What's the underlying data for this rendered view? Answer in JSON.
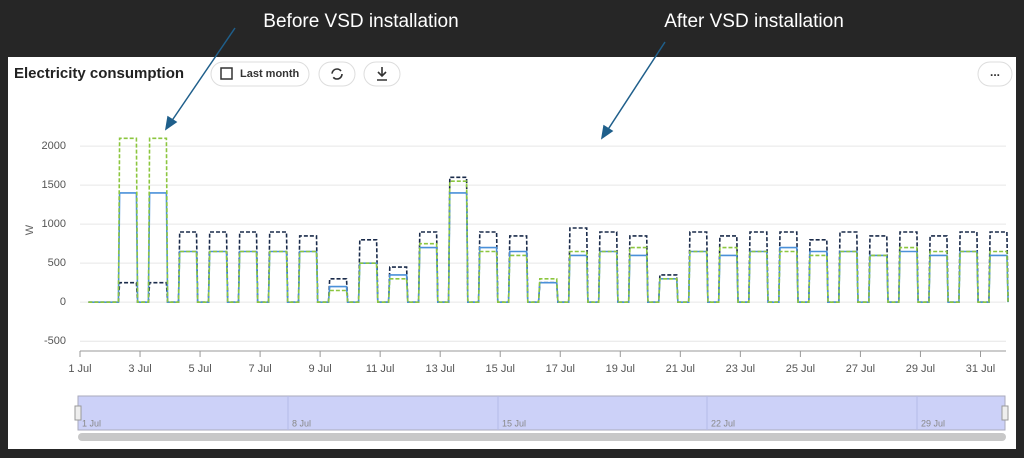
{
  "annotations": [
    "Before VSD installation",
    "After VSD installation"
  ],
  "toolbar": {
    "range_button": "Last month",
    "menu": "..."
  },
  "navigator": {
    "labels": [
      "1 Jul",
      "8 Jul",
      "15 Jul",
      "22 Jul",
      "29 Jul"
    ]
  },
  "chart_data": {
    "type": "line",
    "title": "Electricity consumption",
    "y_label": "W",
    "x": [
      1.28,
      1.32,
      1.88,
      1.92,
      2.28,
      2.32,
      2.88,
      2.92,
      3.28,
      3.32,
      3.88,
      3.92,
      4.28,
      4.32,
      4.88,
      4.92,
      5.28,
      5.32,
      5.88,
      5.92,
      6.28,
      6.32,
      6.88,
      6.92,
      7.28,
      7.32,
      7.88,
      7.92,
      8.28,
      8.32,
      8.88,
      8.92,
      9.28,
      9.32,
      9.88,
      9.92,
      10.28,
      10.32,
      10.88,
      10.92,
      11.28,
      11.32,
      11.88,
      11.92,
      12.28,
      12.32,
      12.88,
      12.92,
      13.28,
      13.32,
      13.88,
      13.92,
      14.28,
      14.32,
      14.88,
      14.92,
      15.28,
      15.32,
      15.88,
      15.92,
      16.28,
      16.32,
      16.88,
      16.92,
      17.28,
      17.32,
      17.88,
      17.92,
      18.28,
      18.32,
      18.88,
      18.92,
      19.28,
      19.32,
      19.88,
      19.92,
      20.28,
      20.32,
      20.88,
      20.92,
      21.28,
      21.32,
      21.88,
      21.92,
      22.28,
      22.32,
      22.88,
      22.92,
      23.28,
      23.32,
      23.88,
      23.92,
      24.28,
      24.32,
      24.88,
      24.92,
      25.28,
      25.32,
      25.88,
      25.92,
      26.28,
      26.32,
      26.88,
      26.92,
      27.28,
      27.32,
      27.88,
      27.92,
      28.28,
      28.32,
      28.88,
      28.92,
      29.28,
      29.32,
      29.88,
      29.92,
      30.28,
      30.32,
      30.88,
      30.92,
      31.28,
      31.32,
      31.88,
      31.92
    ],
    "series": [
      {
        "color": "#1a2b4a",
        "dashed": true,
        "values": [
          0,
          0,
          0,
          0,
          0,
          250,
          250,
          0,
          0,
          250,
          250,
          0,
          0,
          900,
          900,
          0,
          0,
          900,
          900,
          0,
          0,
          900,
          900,
          0,
          0,
          900,
          900,
          0,
          0,
          850,
          850,
          0,
          0,
          300,
          300,
          0,
          0,
          800,
          800,
          0,
          0,
          450,
          450,
          0,
          0,
          900,
          900,
          0,
          0,
          1600,
          1600,
          0,
          0,
          900,
          900,
          0,
          0,
          850,
          850,
          0,
          0,
          250,
          250,
          0,
          0,
          950,
          950,
          0,
          0,
          900,
          900,
          0,
          0,
          850,
          850,
          0,
          0,
          350,
          350,
          0,
          0,
          900,
          900,
          0,
          0,
          850,
          850,
          0,
          0,
          900,
          900,
          0,
          0,
          900,
          900,
          0,
          0,
          800,
          800,
          0,
          0,
          900,
          900,
          0,
          0,
          850,
          850,
          0,
          0,
          900,
          900,
          0,
          0,
          850,
          850,
          0,
          0,
          900,
          900,
          0,
          0,
          900,
          900,
          0
        ]
      },
      {
        "color": "#4a90d9",
        "dashed": false,
        "values": [
          0,
          0,
          0,
          0,
          0,
          1400,
          1400,
          0,
          0,
          1400,
          1400,
          0,
          0,
          650,
          650,
          0,
          0,
          650,
          650,
          0,
          0,
          650,
          650,
          0,
          0,
          650,
          650,
          0,
          0,
          650,
          650,
          0,
          0,
          200,
          200,
          0,
          0,
          500,
          500,
          0,
          0,
          350,
          350,
          0,
          0,
          700,
          700,
          0,
          0,
          1400,
          1400,
          0,
          0,
          700,
          700,
          0,
          0,
          650,
          650,
          0,
          0,
          250,
          250,
          0,
          0,
          600,
          600,
          0,
          0,
          650,
          650,
          0,
          0,
          600,
          600,
          0,
          0,
          300,
          300,
          0,
          0,
          650,
          650,
          0,
          0,
          600,
          600,
          0,
          0,
          650,
          650,
          0,
          0,
          700,
          700,
          0,
          0,
          650,
          650,
          0,
          0,
          650,
          650,
          0,
          0,
          600,
          600,
          0,
          0,
          650,
          650,
          0,
          0,
          600,
          600,
          0,
          0,
          650,
          650,
          0,
          0,
          600,
          600,
          0
        ]
      },
      {
        "color": "#8cc63f",
        "dashed": true,
        "values": [
          0,
          0,
          0,
          0,
          0,
          2100,
          2100,
          0,
          0,
          2100,
          2100,
          0,
          0,
          650,
          650,
          0,
          0,
          650,
          650,
          0,
          0,
          650,
          650,
          0,
          0,
          650,
          650,
          0,
          0,
          650,
          650,
          0,
          0,
          150,
          150,
          0,
          0,
          500,
          500,
          0,
          0,
          300,
          300,
          0,
          0,
          750,
          750,
          0,
          0,
          1550,
          1550,
          0,
          0,
          650,
          650,
          0,
          0,
          600,
          600,
          0,
          0,
          300,
          300,
          0,
          0,
          650,
          650,
          0,
          0,
          650,
          650,
          0,
          0,
          700,
          700,
          0,
          0,
          300,
          300,
          0,
          0,
          650,
          650,
          0,
          0,
          700,
          700,
          0,
          0,
          650,
          650,
          0,
          0,
          650,
          650,
          0,
          0,
          600,
          600,
          0,
          0,
          650,
          650,
          0,
          0,
          600,
          600,
          0,
          0,
          700,
          700,
          0,
          0,
          650,
          650,
          0,
          0,
          650,
          650,
          0,
          0,
          650,
          650,
          0
        ]
      }
    ],
    "xlim": [
      1,
      31.85
    ],
    "xticks": [
      {
        "value": 1,
        "label": "1 Jul"
      },
      {
        "value": 3,
        "label": "3 Jul"
      },
      {
        "value": 5,
        "label": "5 Jul"
      },
      {
        "value": 7,
        "label": "7 Jul"
      },
      {
        "value": 9,
        "label": "9 Jul"
      },
      {
        "value": 11,
        "label": "11 Jul"
      },
      {
        "value": 13,
        "label": "13 Jul"
      },
      {
        "value": 15,
        "label": "15 Jul"
      },
      {
        "value": 17,
        "label": "17 Jul"
      },
      {
        "value": 19,
        "label": "19 Jul"
      },
      {
        "value": 21,
        "label": "21 Jul"
      },
      {
        "value": 23,
        "label": "23 Jul"
      },
      {
        "value": 25,
        "label": "25 Jul"
      },
      {
        "value": 27,
        "label": "27 Jul"
      },
      {
        "value": 29,
        "label": "29 Jul"
      },
      {
        "value": 31,
        "label": "31 Jul"
      }
    ],
    "ylim": [
      -600,
      2450
    ],
    "yticks": [
      -500,
      0,
      500,
      1000,
      1500,
      2000
    ],
    "grid": true
  }
}
